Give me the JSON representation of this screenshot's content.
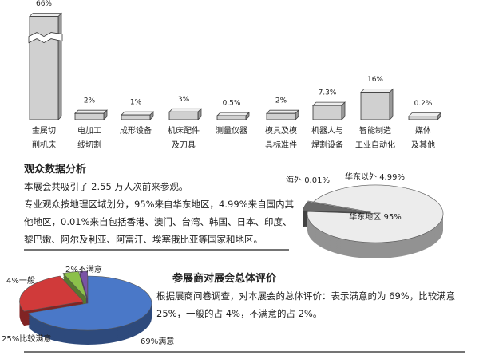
{
  "chart_data": [
    {
      "type": "bar",
      "categories": [
        [
          "金属切",
          "削机床"
        ],
        [
          "电加工",
          "线切割"
        ],
        [
          "成形设备"
        ],
        [
          "机床配件",
          "及刀具"
        ],
        [
          "测量仪器"
        ],
        [
          "模具及模",
          "具标准件"
        ],
        [
          "机器人与",
          "焊割设备"
        ],
        [
          "智能制造",
          "工业自动化"
        ],
        [
          "媒体",
          "及其他"
        ]
      ],
      "values": [
        66,
        2,
        1,
        3,
        0.5,
        2,
        7.3,
        16,
        0.2
      ],
      "value_labels": [
        "66%",
        "2%",
        "1%",
        "3%",
        "0.5%",
        "2%",
        "7.3%",
        "16%",
        "0.2%"
      ],
      "color": "#d0d0d0"
    },
    {
      "type": "pie",
      "labels": [
        "华东地区",
        "华东以外",
        "海外"
      ],
      "values": [
        95,
        4.99,
        0.01
      ],
      "value_labels": [
        "95%",
        "4.99%",
        "0.01%"
      ],
      "colors": [
        "#ececec",
        "#6a6a6a",
        "#2a2a2a"
      ]
    },
    {
      "type": "pie",
      "labels": [
        "满意",
        "比较满意",
        "一般",
        "不满意"
      ],
      "values": [
        69,
        25,
        4,
        2
      ],
      "value_labels": [
        "69%",
        "25%",
        "4%",
        "2%"
      ],
      "colors": [
        "#4a78c8",
        "#d03a3a",
        "#8cc04a",
        "#7a52a6"
      ]
    }
  ],
  "sections": [
    {
      "heading": "观众数据分析",
      "paragraphs": [
        "本展会共吸引了 2.55 万人次前来参观。",
        "专业观众按地理区域划分，95%来自华东地区，4.99%来自国内其他地区，0.01%来自包括香港、澳门、台湾、韩国、日本、印度、黎巴嫩、阿尔及利亚、阿富汗、埃塞俄比亚等国家和地区。"
      ]
    },
    {
      "heading": "参展商对展会总体评价",
      "paragraphs": [
        "根据展商问卷调查，对本展会的总体评价：表示满意的为 69%，比较满意 25%，一般的占 4%，不满意的占 2%。"
      ]
    }
  ]
}
